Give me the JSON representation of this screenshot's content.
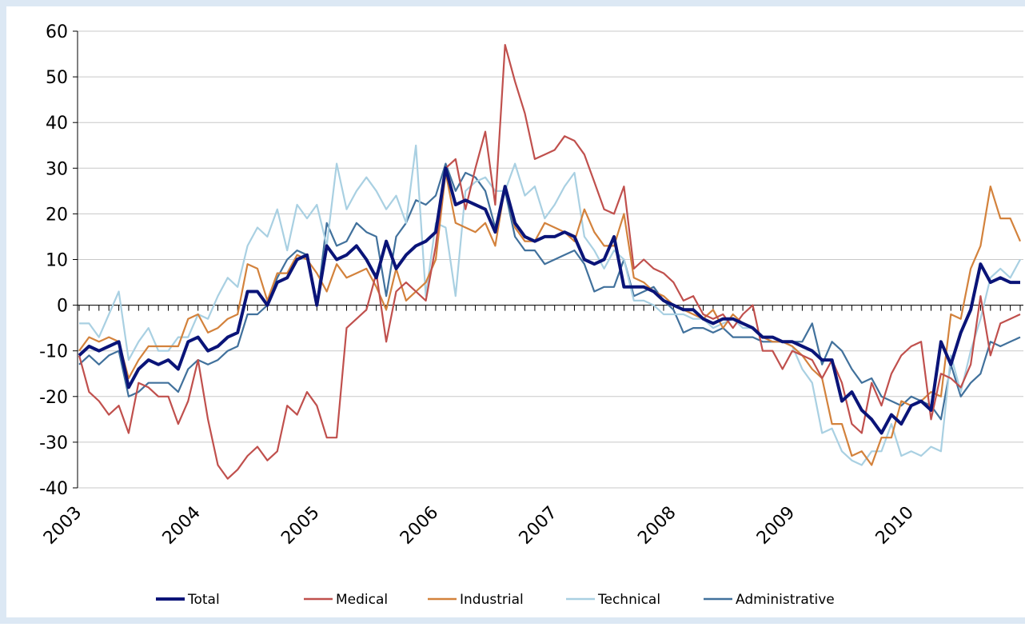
{
  "chart_data": {
    "type": "line",
    "categories": [
      "2003",
      null,
      null,
      null,
      null,
      null,
      null,
      null,
      null,
      null,
      null,
      null,
      "2004",
      null,
      null,
      null,
      null,
      null,
      null,
      null,
      null,
      null,
      null,
      null,
      "2005",
      null,
      null,
      null,
      null,
      null,
      null,
      null,
      null,
      null,
      null,
      null,
      "2006",
      null,
      null,
      null,
      null,
      null,
      null,
      null,
      null,
      null,
      null,
      null,
      "2007",
      null,
      null,
      null,
      null,
      null,
      null,
      null,
      null,
      null,
      null,
      null,
      "2008",
      null,
      null,
      null,
      null,
      null,
      null,
      null,
      null,
      null,
      null,
      null,
      "2009",
      null,
      null,
      null,
      null,
      null,
      null,
      null,
      null,
      null,
      null,
      null,
      "2010",
      null,
      null,
      null,
      null,
      null,
      null,
      null,
      null,
      null,
      null,
      null
    ],
    "series": [
      {
        "name": "Total",
        "color": "#0a1478",
        "values": [
          -11,
          -9,
          -10,
          -9,
          -8,
          -18,
          -14,
          -12,
          -13,
          -12,
          -14,
          -8,
          -7,
          -10,
          -9,
          -7,
          -6,
          3,
          3,
          0,
          5,
          6,
          10,
          11,
          0,
          13,
          10,
          11,
          13,
          10,
          6,
          14,
          8,
          11,
          13,
          14,
          16,
          30,
          22,
          23,
          22,
          21,
          16,
          26,
          18,
          15,
          14,
          15,
          15,
          16,
          15,
          10,
          9,
          10,
          15,
          4,
          4,
          4,
          3,
          1,
          0,
          -1,
          -1,
          -3,
          -4,
          -3,
          -3,
          -4,
          -5,
          -7,
          -7,
          -8,
          -8,
          -9,
          -10,
          -12,
          -12,
          -21,
          -19,
          -23,
          -25,
          -28,
          -24,
          -26,
          -22,
          -21,
          -23,
          -8,
          -13,
          -6,
          -1,
          9,
          5,
          6,
          5,
          5
        ]
      },
      {
        "name": "Medical",
        "color": "#c0504d",
        "values": [
          -11,
          -19,
          -21,
          -24,
          -22,
          -28,
          -17,
          -18,
          -20,
          -20,
          -26,
          -21,
          -12,
          -25,
          -35,
          -38,
          -36,
          -33,
          -31,
          -34,
          -32,
          -22,
          -24,
          -19,
          -22,
          -29,
          -29,
          -5,
          -3,
          -1,
          7,
          -8,
          3,
          5,
          3,
          1,
          13,
          30,
          32,
          21,
          30,
          38,
          22,
          57,
          49,
          42,
          32,
          33,
          34,
          37,
          36,
          33,
          27,
          21,
          20,
          26,
          8,
          10,
          8,
          7,
          5,
          1,
          2,
          -2,
          -3,
          -2,
          -5,
          -2,
          0,
          -10,
          -10,
          -14,
          -10,
          -11,
          -12,
          -16,
          -12,
          -17,
          -26,
          -28,
          -17,
          -22,
          -15,
          -11,
          -9,
          -8,
          -25,
          -15,
          -16,
          -18,
          -13,
          2,
          -11,
          -4,
          -3,
          -2
        ]
      },
      {
        "name": "Industrial",
        "color": "#d3823c",
        "values": [
          -10,
          -7,
          -8,
          -7,
          -8,
          -16,
          -12,
          -9,
          -9,
          -9,
          -9,
          -3,
          -2,
          -6,
          -5,
          -3,
          -2,
          9,
          8,
          1,
          7,
          7,
          11,
          10,
          7,
          3,
          9,
          6,
          7,
          8,
          4,
          -1,
          8,
          1,
          3,
          5,
          10,
          29,
          18,
          17,
          16,
          18,
          13,
          26,
          17,
          14,
          14,
          18,
          17,
          16,
          14,
          21,
          16,
          13,
          13,
          20,
          6,
          5,
          3,
          2,
          0,
          -1,
          -2,
          -3,
          -1,
          -5,
          -2,
          -4,
          -5,
          -7,
          -8,
          -8,
          -9,
          -11,
          -14,
          -16,
          -26,
          -26,
          -33,
          -32,
          -35,
          -29,
          -29,
          -21,
          -22,
          -21,
          -19,
          -20,
          -2,
          -3,
          8,
          13,
          26,
          19,
          19,
          14
        ]
      },
      {
        "name": "Technical",
        "color": "#a9d0e2",
        "values": [
          -4,
          -4,
          -7,
          -2,
          3,
          -12,
          -8,
          -5,
          -10,
          -10,
          -7,
          -7,
          -2,
          -3,
          2,
          6,
          4,
          13,
          17,
          15,
          21,
          12,
          22,
          19,
          22,
          13,
          31,
          21,
          25,
          28,
          25,
          21,
          24,
          18,
          35,
          2,
          18,
          17,
          2,
          25,
          27,
          28,
          25,
          25,
          31,
          24,
          26,
          19,
          22,
          26,
          29,
          15,
          12,
          8,
          12,
          10,
          1,
          1,
          0,
          -2,
          -2,
          -2,
          -3,
          -3,
          -5,
          -4,
          -3,
          -5,
          -5,
          -7,
          -7,
          -8,
          -9,
          -14,
          -17,
          -28,
          -27,
          -32,
          -34,
          -35,
          -32,
          -32,
          -26,
          -33,
          -32,
          -33,
          -31,
          -32,
          -11,
          -19,
          -10,
          -3,
          6,
          8,
          6,
          10
        ]
      },
      {
        "name": "Administrative",
        "color": "#41719c",
        "values": [
          -13,
          -11,
          -13,
          -11,
          -10,
          -20,
          -19,
          -17,
          -17,
          -17,
          -19,
          -14,
          -12,
          -13,
          -12,
          -10,
          -9,
          -2,
          -2,
          0,
          6,
          10,
          12,
          11,
          0,
          18,
          13,
          14,
          18,
          16,
          15,
          2,
          15,
          18,
          23,
          22,
          24,
          31,
          25,
          29,
          28,
          25,
          17,
          25,
          15,
          12,
          12,
          9,
          10,
          11,
          12,
          9,
          3,
          4,
          4,
          10,
          2,
          3,
          4,
          1,
          -1,
          -6,
          -5,
          -5,
          -6,
          -5,
          -7,
          -7,
          -7,
          -8,
          -8,
          -8,
          -8,
          -8,
          -4,
          -13,
          -8,
          -10,
          -14,
          -17,
          -16,
          -20,
          -21,
          -22,
          -20,
          -21,
          -22,
          -25,
          -13,
          -20,
          -17,
          -15,
          -8,
          -9,
          -8,
          -7
        ]
      }
    ],
    "ylim": [
      -40,
      60
    ],
    "yticks": [
      -40,
      -30,
      -20,
      -10,
      0,
      10,
      20,
      30,
      40,
      50,
      60
    ],
    "grid": true,
    "legend": "bottom"
  }
}
